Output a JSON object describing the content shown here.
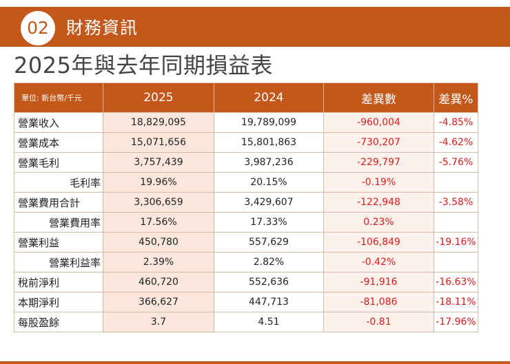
{
  "header": {
    "badge_number": "02",
    "section_title": "財務資訊"
  },
  "page_title": "2025年與去年同期損益表",
  "table": {
    "columns": [
      "單位: 新台幣/千元",
      "2025",
      "2024",
      "差異數",
      "差異%"
    ],
    "rows": [
      {
        "label": "營業收入",
        "y2025": "18,829,095",
        "y2024": "19,789,099",
        "diff": "-960,004",
        "pct": "-4.85%"
      },
      {
        "label": "營業成本",
        "y2025": "15,071,656",
        "y2024": "15,801,863",
        "diff": "-730,207",
        "pct": "-4.62%"
      },
      {
        "label": "營業毛利",
        "y2025": "3,757,439",
        "y2024": "3,987,236",
        "diff": "-229,797",
        "pct": "-5.76%"
      },
      {
        "label": "毛利率",
        "y2025": "19.96%",
        "y2024": "20.15%",
        "diff": "-0.19%",
        "pct": ""
      },
      {
        "label": "營業費用合計",
        "y2025": "3,306,659",
        "y2024": "3,429,607",
        "diff": "-122,948",
        "pct": "-3.58%"
      },
      {
        "label": "營業費用率",
        "y2025": "17.56%",
        "y2024": "17.33%",
        "diff": "0.23%",
        "pct": ""
      },
      {
        "label": "營業利益",
        "y2025": "450,780",
        "y2024": "557,629",
        "diff": "-106,849",
        "pct": "-19.16%"
      },
      {
        "label": "營業利益率",
        "y2025": "2.39%",
        "y2024": "2.82%",
        "diff": "-0.42%",
        "pct": ""
      },
      {
        "label": "稅前淨利",
        "y2025": "460,720",
        "y2024": "552,636",
        "diff": "-91,916",
        "pct": "-16.63%"
      },
      {
        "label": "本期淨利",
        "y2025": "366,627",
        "y2024": "447,713",
        "diff": "-81,086",
        "pct": "-18.11%"
      },
      {
        "label": "每股盈餘",
        "y2025": "3.7",
        "y2024": "4.51",
        "diff": "-0.81",
        "pct": "-17.96%"
      }
    ]
  },
  "colors": {
    "accent": "#c4571a",
    "negative_text": "#e01b1b",
    "highlight_2025": "#fbe7dc"
  }
}
